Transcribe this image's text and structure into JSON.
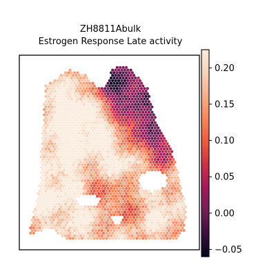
{
  "chart_data": {
    "type": "heatmap",
    "title": "ZH8811Abulk",
    "subtitle": "Estrogen Response Late activity",
    "xlabel": "",
    "ylabel": "",
    "colormap": "rocket",
    "colormap_stops": [
      "#03051a",
      "#3b0f3e",
      "#701f57",
      "#a11a5b",
      "#cf2e46",
      "#ed5a3f",
      "#f5865e",
      "#f6af8c",
      "#f7d4bd",
      "#faebdd"
    ],
    "colorbar": {
      "vmin": -0.06,
      "vmax": 0.225,
      "ticks": [
        -0.05,
        0.0,
        0.05,
        0.1,
        0.15,
        0.2
      ],
      "tick_labels": [
        "−0.05",
        "0.00",
        "0.05",
        "0.10",
        "0.15",
        "0.20"
      ]
    },
    "grid": false,
    "legend": "colorbar right"
  }
}
